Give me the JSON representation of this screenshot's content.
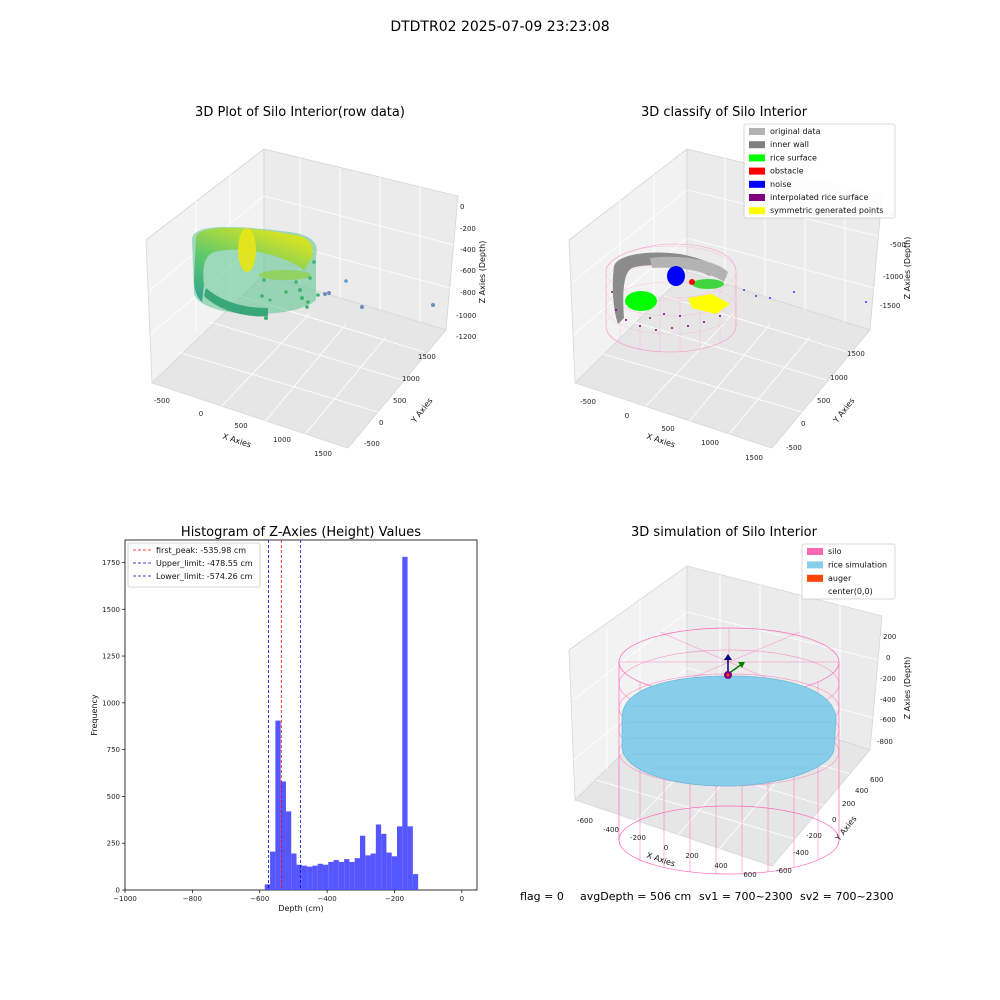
{
  "figure": {
    "suptitle": "DTDTR02 2025-07-09 23:23:08",
    "footer": {
      "flag": "flag = 0",
      "avg_depth": "avgDepth = 506 cm",
      "sv1": "sv1 = 700~2300",
      "sv2": "sv2 = 700~2300"
    }
  },
  "colors": {
    "raw_gradient": [
      "#2a9d8f",
      "#3cb371",
      "#9acd32",
      "#e5e51a"
    ],
    "original_data": "#b3b3b3",
    "inner_wall": "#808080",
    "rice_surface": "#00ff00",
    "obstacle": "#ff0000",
    "noise": "#0000ff",
    "interpolated_rice_surface": "#800080",
    "symmetric_generated_points": "#ffff00",
    "silo": "#ff69b4",
    "rice_simulation": "#87ceeb",
    "auger": "#ff4500",
    "hist_bar": "#4d4dff",
    "first_peak_line": "#ff0000",
    "limit_line": "#0000cc"
  },
  "chart_data": [
    {
      "type": "scatter",
      "title": "3D Plot of Silo Interior(row data)",
      "xlabel": "X Axies",
      "ylabel": "Y Axies",
      "zlabel": "Z Axies (Depth)",
      "x_ticks": [
        "-500",
        "0",
        "500",
        "1000",
        "1500"
      ],
      "y_ticks": [
        "-500",
        "0",
        "500",
        "1000",
        "1500"
      ],
      "z_ticks": [
        "0",
        "-200",
        "-400",
        "-600",
        "-800",
        "-1000",
        "-1200"
      ],
      "xlim": [
        -650,
        1650
      ],
      "ylim": [
        -650,
        1650
      ],
      "zlim": [
        -1250,
        50
      ],
      "colormap": "viridis",
      "points_note": ""
    },
    {
      "type": "scatter",
      "title": "3D classify of Silo Interior",
      "xlabel": "X Axies",
      "ylabel": "Y Axies",
      "zlabel": "Z Axies (Depth)",
      "x_ticks": [
        "-500",
        "0",
        "500",
        "1000",
        "1500"
      ],
      "y_ticks": [
        "-500",
        "0",
        "500",
        "1000",
        "1500"
      ],
      "z_ticks": [
        "0",
        "-500",
        "-1000",
        "-1500"
      ],
      "xlim": [
        -650,
        1650
      ],
      "ylim": [
        -650,
        1650
      ],
      "zlim": [
        -1550,
        250
      ],
      "legend_position": "top-right",
      "legend": [
        {
          "label": "original data",
          "color_key": "original_data"
        },
        {
          "label": "inner wall",
          "color_key": "inner_wall"
        },
        {
          "label": "rice surface",
          "color_key": "rice_surface"
        },
        {
          "label": "obstacle",
          "color_key": "obstacle"
        },
        {
          "label": "noise",
          "color_key": "noise"
        },
        {
          "label": "interpolated rice surface",
          "color_key": "interpolated_rice_surface"
        },
        {
          "label": "symmetric generated points",
          "color_key": "symmetric_generated_points"
        }
      ]
    },
    {
      "type": "bar",
      "title": "Histogram of Z-Axies (Height) Values",
      "xlabel": "Depth (cm)",
      "ylabel": "Frequency",
      "xlim": [
        -1000,
        45
      ],
      "ylim": [
        0,
        1870
      ],
      "x_ticks": [
        -1000,
        -800,
        -600,
        -400,
        -200,
        0
      ],
      "x_tick_labels": [
        "−1000",
        "−800",
        "−600",
        "−400",
        "−200",
        "0"
      ],
      "y_ticks": [
        0,
        250,
        500,
        750,
        1000,
        1250,
        1500,
        1750
      ],
      "bins": {
        "start": -585,
        "width": 15.7,
        "counts": [
          30,
          205,
          905,
          580,
          420,
          195,
          135,
          130,
          125,
          130,
          140,
          135,
          150,
          160,
          150,
          165,
          150,
          170,
          290,
          185,
          195,
          350,
          300,
          200,
          180,
          340,
          1780,
          340,
          85
        ]
      },
      "vlines": [
        {
          "label": "first_peak: -535.98 cm",
          "x": -535.98,
          "color_key": "first_peak_line"
        },
        {
          "label": "Upper_limit: -478.55 cm",
          "x": -478.55,
          "color_key": "limit_line"
        },
        {
          "label": "Lower_limit: -574.26 cm",
          "x": -574.26,
          "color_key": "limit_line"
        }
      ],
      "legend_position": "top-left"
    },
    {
      "type": "scatter",
      "title": "3D simulation of Silo Interior",
      "xlabel": "X Axies",
      "ylabel": "Y Axies",
      "zlabel": "Z Axies (Depth)",
      "x_ticks": [
        "-600",
        "-400",
        "-200",
        "0",
        "200",
        "400",
        "600"
      ],
      "y_ticks": [
        "-600",
        "-400",
        "-200",
        "0",
        "200",
        "400",
        "600"
      ],
      "z_ticks": [
        "200",
        "0",
        "-200",
        "-400",
        "-600",
        "-800"
      ],
      "xlim": [
        -650,
        650
      ],
      "ylim": [
        -650,
        650
      ],
      "zlim": [
        -900,
        300
      ],
      "legend_position": "top-right",
      "legend": [
        {
          "label": "silo",
          "color_key": "silo"
        },
        {
          "label": "rice simulation",
          "color_key": "rice_simulation"
        },
        {
          "label": "auger",
          "color_key": "auger"
        },
        {
          "label": "center(0,0)",
          "color_key": ""
        }
      ]
    }
  ]
}
